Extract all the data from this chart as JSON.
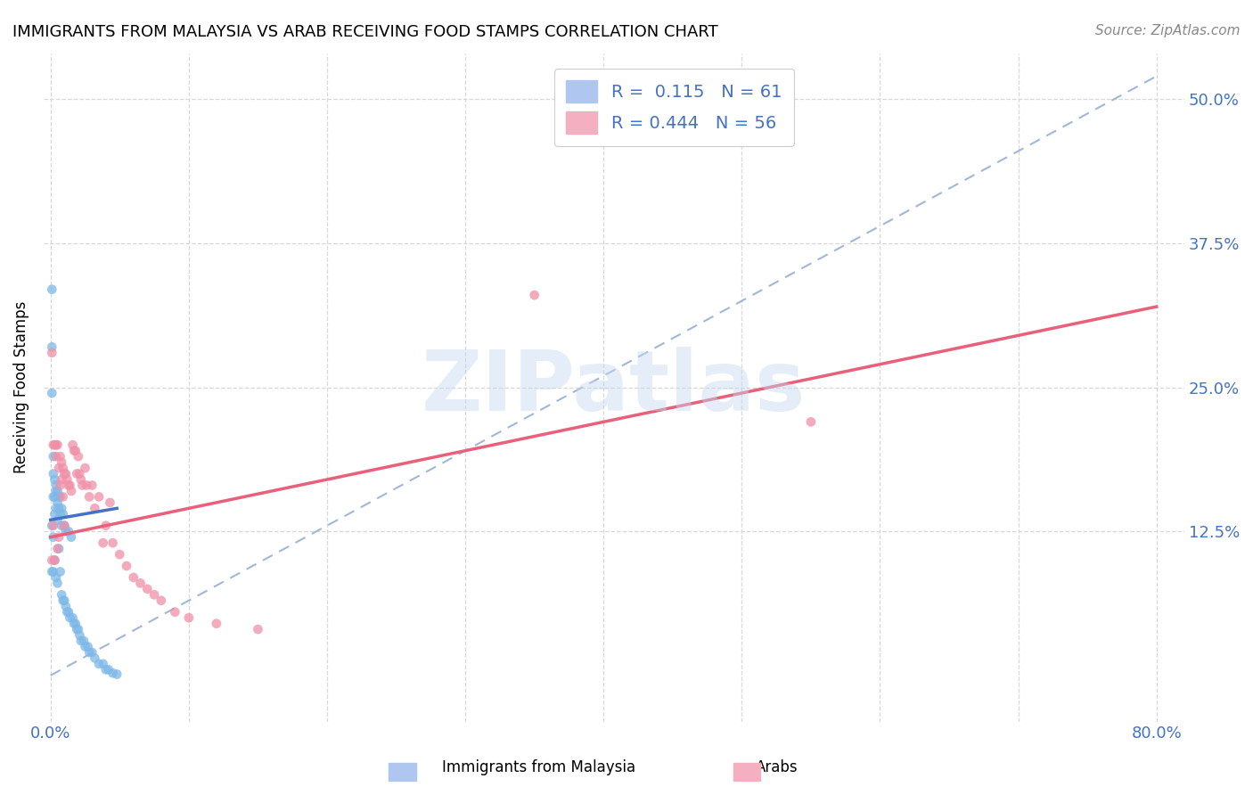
{
  "title": "IMMIGRANTS FROM MALAYSIA VS ARAB RECEIVING FOOD STAMPS CORRELATION CHART",
  "source": "Source: ZipAtlas.com",
  "ylabel": "Receiving Food Stamps",
  "ytick_values": [
    0.125,
    0.25,
    0.375,
    0.5
  ],
  "ytick_labels": [
    "12.5%",
    "25.0%",
    "37.5%",
    "50.0%"
  ],
  "xlim": [
    -0.005,
    0.82
  ],
  "ylim": [
    -0.04,
    0.54
  ],
  "watermark_text": "ZIPatlas",
  "malaysia_color": "#7db8e8",
  "arab_color": "#f090a8",
  "malaysia_line_color": "#4472c4",
  "arab_line_color": "#e8607a",
  "dashed_line_color": "#a0b8d8",
  "legend_color_malaysia": "#aec6f0",
  "legend_color_arab": "#f4b0c0",
  "background_color": "#ffffff",
  "grid_color": "#d8d8d8",
  "malaysia_scatter_x": [
    0.001,
    0.001,
    0.001,
    0.001,
    0.001,
    0.002,
    0.002,
    0.002,
    0.002,
    0.002,
    0.003,
    0.003,
    0.003,
    0.003,
    0.004,
    0.004,
    0.004,
    0.004,
    0.005,
    0.005,
    0.005,
    0.005,
    0.006,
    0.006,
    0.006,
    0.007,
    0.007,
    0.007,
    0.008,
    0.008,
    0.008,
    0.009,
    0.009,
    0.01,
    0.01,
    0.011,
    0.011,
    0.012,
    0.013,
    0.013,
    0.014,
    0.015,
    0.016,
    0.017,
    0.018,
    0.019,
    0.02,
    0.021,
    0.022,
    0.024,
    0.025,
    0.027,
    0.028,
    0.03,
    0.032,
    0.035,
    0.038,
    0.04,
    0.042,
    0.045,
    0.048
  ],
  "malaysia_scatter_y": [
    0.335,
    0.285,
    0.245,
    0.13,
    0.09,
    0.19,
    0.175,
    0.155,
    0.12,
    0.09,
    0.17,
    0.155,
    0.14,
    0.1,
    0.165,
    0.16,
    0.145,
    0.085,
    0.16,
    0.15,
    0.135,
    0.08,
    0.155,
    0.145,
    0.11,
    0.155,
    0.14,
    0.09,
    0.145,
    0.13,
    0.07,
    0.14,
    0.065,
    0.13,
    0.065,
    0.125,
    0.06,
    0.055,
    0.125,
    0.055,
    0.05,
    0.12,
    0.05,
    0.045,
    0.045,
    0.04,
    0.04,
    0.035,
    0.03,
    0.03,
    0.025,
    0.025,
    0.02,
    0.02,
    0.015,
    0.01,
    0.01,
    0.005,
    0.005,
    0.002,
    0.001
  ],
  "arab_scatter_x": [
    0.001,
    0.001,
    0.002,
    0.002,
    0.003,
    0.003,
    0.004,
    0.004,
    0.005,
    0.005,
    0.006,
    0.006,
    0.007,
    0.007,
    0.008,
    0.008,
    0.009,
    0.009,
    0.01,
    0.01,
    0.011,
    0.012,
    0.013,
    0.014,
    0.015,
    0.016,
    0.017,
    0.018,
    0.019,
    0.02,
    0.021,
    0.022,
    0.023,
    0.025,
    0.026,
    0.028,
    0.03,
    0.032,
    0.035,
    0.038,
    0.04,
    0.043,
    0.045,
    0.05,
    0.055,
    0.06,
    0.065,
    0.07,
    0.075,
    0.08,
    0.09,
    0.1,
    0.12,
    0.15,
    0.35,
    0.55
  ],
  "arab_scatter_y": [
    0.28,
    0.1,
    0.2,
    0.13,
    0.2,
    0.1,
    0.2,
    0.19,
    0.2,
    0.11,
    0.18,
    0.12,
    0.19,
    0.165,
    0.185,
    0.17,
    0.18,
    0.155,
    0.175,
    0.13,
    0.175,
    0.17,
    0.165,
    0.165,
    0.16,
    0.2,
    0.195,
    0.195,
    0.175,
    0.19,
    0.175,
    0.17,
    0.165,
    0.18,
    0.165,
    0.155,
    0.165,
    0.145,
    0.155,
    0.115,
    0.13,
    0.15,
    0.115,
    0.105,
    0.095,
    0.085,
    0.08,
    0.075,
    0.07,
    0.065,
    0.055,
    0.05,
    0.045,
    0.04,
    0.33,
    0.22
  ],
  "malaysia_line_x0": 0.0,
  "malaysia_line_x1": 0.048,
  "malaysia_line_y0": 0.135,
  "malaysia_line_y1": 0.145,
  "arab_line_x0": 0.0,
  "arab_line_x1": 0.8,
  "arab_line_y0": 0.12,
  "arab_line_y1": 0.32,
  "dash_line_x0": 0.0,
  "dash_line_x1": 0.8,
  "dash_line_y0": 0.0,
  "dash_line_y1": 0.52
}
